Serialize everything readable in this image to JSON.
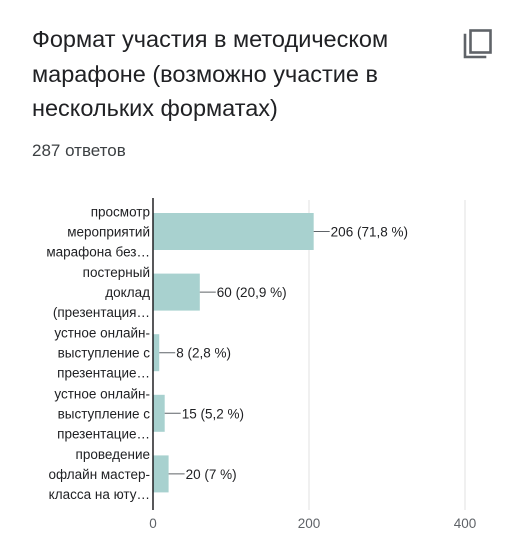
{
  "header": {
    "title": "Формат участия в методическом марафоне (возможно участие в нескольких форматах)",
    "responses": "287 ответов",
    "copy_icon": "copy-icon"
  },
  "chart_data": {
    "type": "bar",
    "orientation": "horizontal",
    "categories": [
      [
        "просмотр",
        "мероприятий",
        "марафона без…"
      ],
      [
        "постерный",
        "доклад",
        "(презентация…"
      ],
      [
        "устное онлайн-",
        "выступление с",
        "презентацие…"
      ],
      [
        "устное онлайн-",
        "выступление с",
        "презентацие…"
      ],
      [
        "проведение",
        "офлайн мастер-",
        "класса на юту…"
      ]
    ],
    "values": [
      206,
      60,
      8,
      15,
      20
    ],
    "value_labels": [
      "206 (71,8 %)",
      "60 (20,9 %)",
      "8 (2,8 %)",
      "15 (5,2 %)",
      "20 (7 %)"
    ],
    "xlim": [
      0,
      400
    ],
    "xticks": [
      0,
      200,
      400
    ],
    "grid": true,
    "colors": {
      "bar": "#a8d1cf",
      "axis": "#202124",
      "grid": "#e0e0e0",
      "leader": "#5f6368"
    }
  }
}
